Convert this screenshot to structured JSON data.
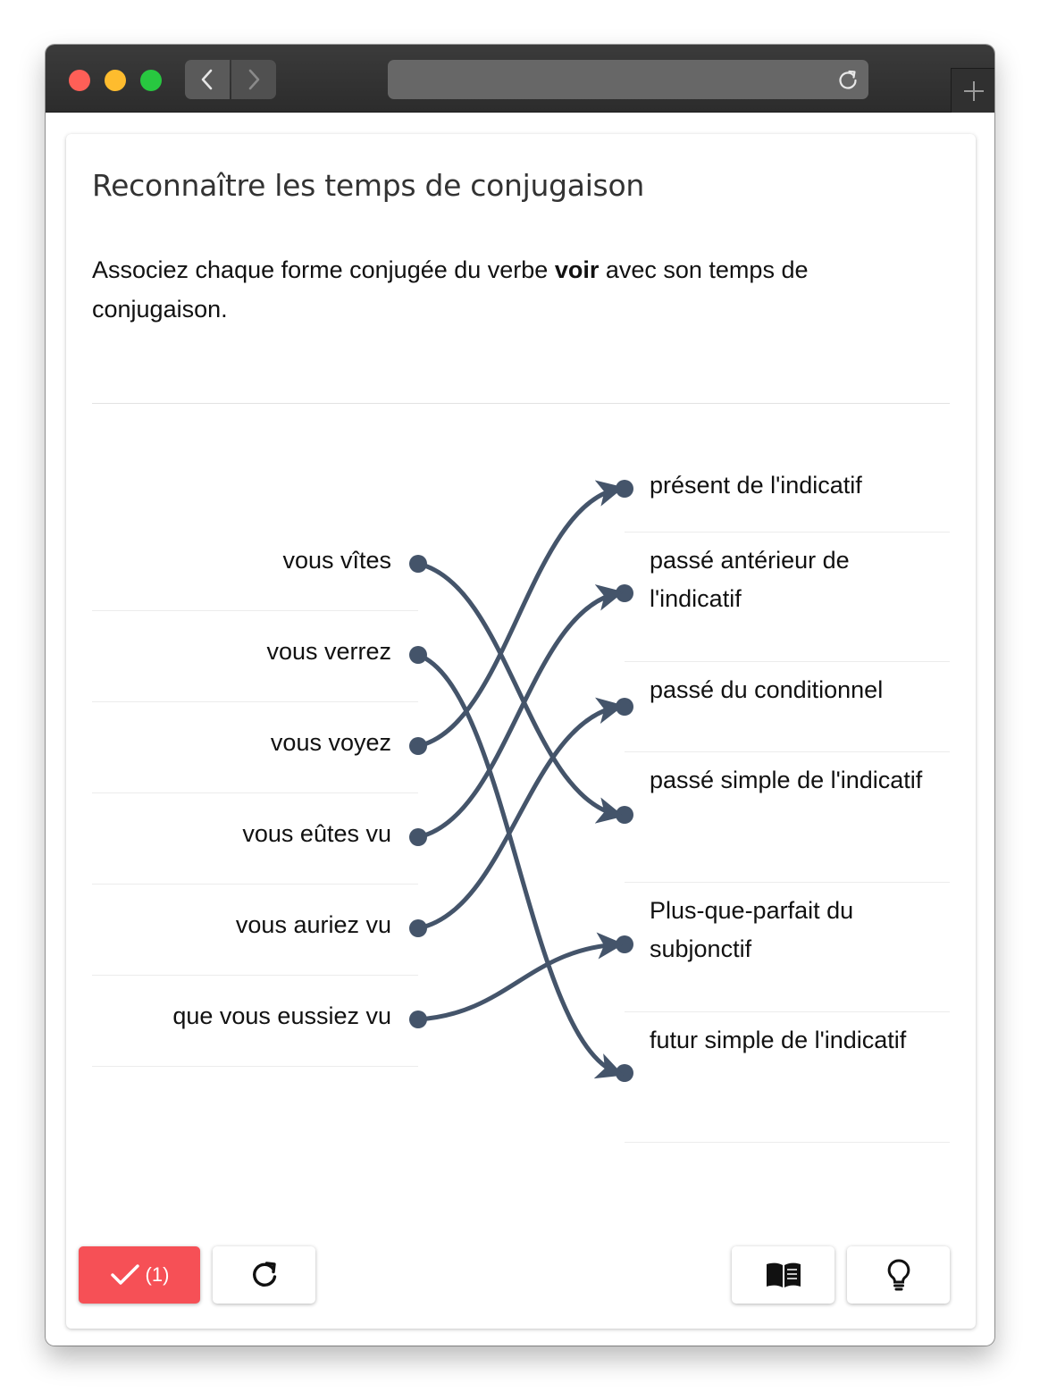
{
  "exercise": {
    "title": "Reconnaître les temps de conjugaison",
    "instruction_before": "Associez chaque forme conjugée du verbe ",
    "instruction_verb": "voir",
    "instruction_after": " avec son temps de conjugaison."
  },
  "left_items": [
    {
      "label": "vous vîtes"
    },
    {
      "label": "vous verrez"
    },
    {
      "label": "vous voyez"
    },
    {
      "label": "vous eûtes vu"
    },
    {
      "label": "vous auriez vu"
    },
    {
      "label": "que vous eussiez vu"
    }
  ],
  "right_items": [
    {
      "label": "présent de l'indicatif"
    },
    {
      "label": "passé antérieur de l'indicatif"
    },
    {
      "label": "passé du conditionnel"
    },
    {
      "label": "passé simple de l'indicatif"
    },
    {
      "label": "Plus-que-parfait du subjonctif"
    },
    {
      "label": "futur simple de l'indicatif"
    }
  ],
  "connections": [
    {
      "from": "vous vîtes",
      "to": "passé simple de l'indicatif"
    },
    {
      "from": "vous verrez",
      "to": "futur simple de l'indicatif"
    },
    {
      "from": "vous voyez",
      "to": "présent de l'indicatif"
    },
    {
      "from": "vous eûtes vu",
      "to": "passé antérieur de l'indicatif"
    },
    {
      "from": "vous auriez vu",
      "to": "passé du conditionnel"
    },
    {
      "from": "que vous eussiez vu",
      "to": "Plus-que-parfait du subjonctif"
    }
  ],
  "toolbar": {
    "check_count": "(1)",
    "check_icon": "checkmark-icon",
    "reset_icon": "reload-icon",
    "book_icon": "book-icon",
    "hint_icon": "lightbulb-icon"
  },
  "colors": {
    "link": "#44546a",
    "check_button": "#f65056"
  }
}
